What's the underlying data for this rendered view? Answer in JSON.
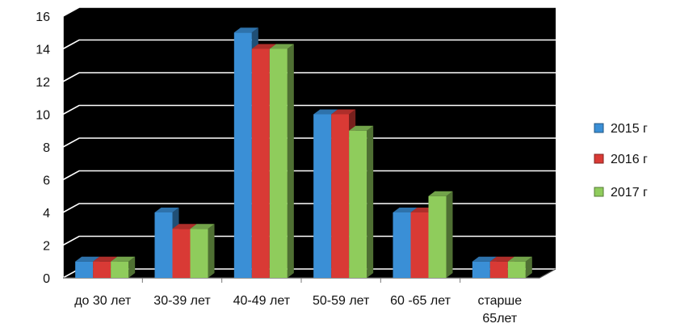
{
  "chart_data": {
    "type": "bar",
    "categories": [
      "до 30 лет",
      "30-39 лет",
      "40-49 лет",
      "50-59 лет",
      "60 -65 лет",
      "старше 65лет"
    ],
    "category_lines": [
      [
        "до 30 лет"
      ],
      [
        "30-39 лет"
      ],
      [
        "40-49 лет"
      ],
      [
        "50-59 лет"
      ],
      [
        "60 -65 лет"
      ],
      [
        "старше",
        "65лет"
      ]
    ],
    "series": [
      {
        "name": "2015 г",
        "color": "#3a8fd6",
        "values": [
          1,
          4,
          15,
          10,
          4,
          1
        ]
      },
      {
        "name": "2016 г",
        "color": "#d93a35",
        "values": [
          1,
          3,
          14,
          10,
          4,
          1
        ]
      },
      {
        "name": "2017 г",
        "color": "#8fcc5c",
        "values": [
          1,
          3,
          14,
          9,
          5,
          1
        ]
      }
    ],
    "yticks": [
      0,
      2,
      4,
      6,
      8,
      10,
      12,
      14,
      16
    ],
    "ylim": [
      0,
      16
    ],
    "grid": true,
    "plot_background": "#000000",
    "legend_position": "right",
    "projection": "3d"
  }
}
